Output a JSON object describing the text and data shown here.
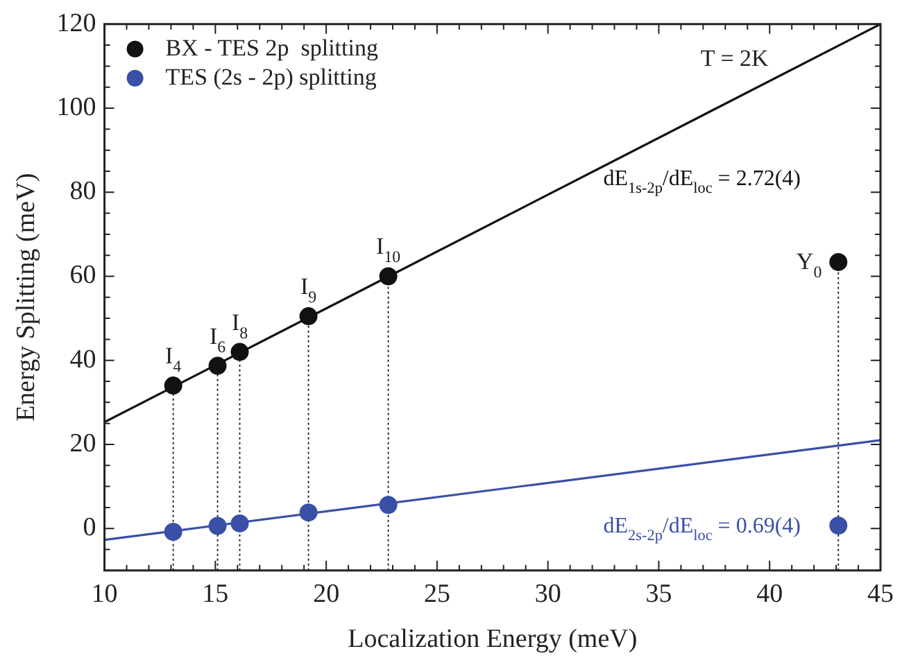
{
  "chart_data": {
    "type": "scatter",
    "xlabel": "Localization Energy (meV)",
    "ylabel": "Energy Splitting (meV)",
    "xlim": [
      10,
      45
    ],
    "xticks": [
      10,
      15,
      20,
      25,
      30,
      35,
      40,
      45
    ],
    "ylim": [
      -10,
      120
    ],
    "yticks": [
      0,
      20,
      40,
      60,
      80,
      100,
      120
    ],
    "grid": false,
    "legend": "top left",
    "series": [
      {
        "name": "BX - TES 2p  splitting",
        "color": "#111111",
        "marker": "circle",
        "x": [
          13.1,
          15.1,
          16.1,
          19.2,
          22.8,
          43.1
        ],
        "values": [
          34,
          38.7,
          42,
          50.5,
          60,
          63.4
        ]
      },
      {
        "name": "TES (2s - 2p) splitting",
        "color": "#3a4fa6",
        "marker": "circle",
        "x": [
          13.1,
          15.1,
          16.1,
          19.2,
          22.8,
          43.1
        ],
        "values": [
          -0.8,
          0.6,
          1.2,
          3.8,
          5.6,
          0.7
        ]
      },
      {
        "type": "line",
        "color": "#111111",
        "marker": "none",
        "x": [
          10,
          45
        ],
        "values": [
          25.3,
          120
        ]
      },
      {
        "type": "line",
        "color": "#3a4fa6",
        "marker": "none",
        "x": [
          10,
          45
        ],
        "values": [
          -2.7,
          21
        ]
      }
    ],
    "ref_lines": [
      {
        "axis": "x",
        "value": 13.1,
        "line_style": "dotted",
        "color": "#111111"
      },
      {
        "axis": "x",
        "value": 15.1,
        "line_style": "dotted",
        "color": "#111111"
      },
      {
        "axis": "x",
        "value": 16.1,
        "line_style": "dotted",
        "color": "#111111"
      },
      {
        "axis": "x",
        "value": 19.2,
        "line_style": "dotted",
        "color": "#111111"
      },
      {
        "axis": "x",
        "value": 22.8,
        "line_style": "dotted",
        "color": "#111111"
      },
      {
        "axis": "x",
        "value": 43.1,
        "line_style": "dotted",
        "color": "#111111"
      }
    ],
    "annotations": [
      {
        "text": "I$_{4}$",
        "x": 13.1,
        "y": 34
      },
      {
        "text": "I$_{6}$",
        "x": 15.1,
        "y": 38.7
      },
      {
        "text": "I$_{8}$",
        "x": 16.1,
        "y": 42
      },
      {
        "text": "I$_{9}$",
        "x": 19.2,
        "y": 50.5
      },
      {
        "text": "I$_{10}$",
        "x": 22.8,
        "y": 60
      },
      {
        "text": "Y$_{0}$",
        "x": 43.1,
        "y": 63.4
      },
      "T = 2K",
      "dE$_{1s-2p}$/dE$_{loc}$ = 2.72(4)",
      "dE$_{2s-2p}$/dE$_{loc}$ = 0.69(4)"
    ]
  }
}
